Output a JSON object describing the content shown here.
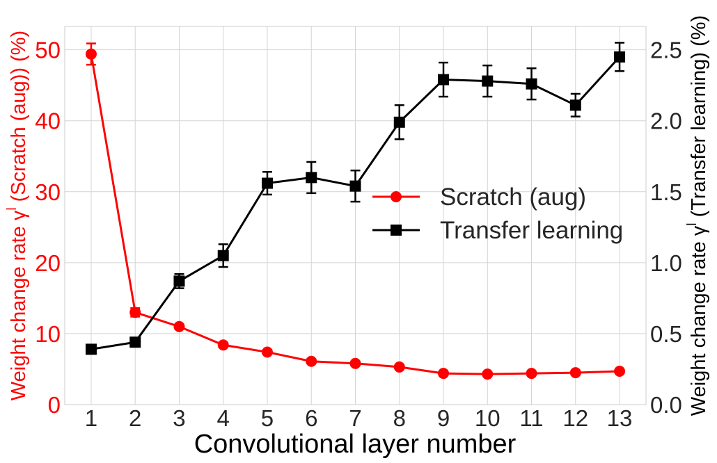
{
  "chart_data": {
    "type": "line",
    "xlabel": "Convolutional layer number",
    "ylabel_left": "Weight change rate γ",
    "ylabel_left_sup": "l",
    "ylabel_left_suffix": " (Scratch (aug)) (%)",
    "ylabel_right": "Weight change rate γ",
    "ylabel_right_sup": "l",
    "ylabel_right_suffix": " (Transfer learning) (%)",
    "x": [
      1,
      2,
      3,
      4,
      5,
      6,
      7,
      8,
      9,
      10,
      11,
      12,
      13
    ],
    "x_ticks": [
      "1",
      "2",
      "3",
      "4",
      "5",
      "6",
      "7",
      "8",
      "9",
      "10",
      "11",
      "12",
      "13"
    ],
    "xlim": [
      0.4,
      13.6
    ],
    "ylim_left": [
      0,
      53.3
    ],
    "ylim_right": [
      0,
      2.665
    ],
    "yticks_left": [
      "0",
      "10",
      "20",
      "30",
      "40",
      "50"
    ],
    "yticks_right": [
      "0.0",
      "0.5",
      "1.0",
      "1.5",
      "2.0",
      "2.5"
    ],
    "grid": true,
    "legend_position": "center-right",
    "series": [
      {
        "name": "Scratch (aug)",
        "axis": "left",
        "color": "#ff0000",
        "marker": "circle",
        "values": [
          49.4,
          13.0,
          11.0,
          8.4,
          7.4,
          6.1,
          5.8,
          5.3,
          4.4,
          4.3,
          4.4,
          4.5,
          4.7
        ],
        "errors": [
          1.5,
          0.6,
          0.3,
          0.3,
          0.3,
          0.3,
          0.3,
          0.3,
          0.2,
          0.2,
          0.2,
          0.2,
          0.2
        ]
      },
      {
        "name": "Transfer learning",
        "axis": "right",
        "color": "#000000",
        "marker": "square",
        "values": [
          0.39,
          0.44,
          0.87,
          1.05,
          1.56,
          1.6,
          1.54,
          1.99,
          2.29,
          2.28,
          2.26,
          2.11,
          2.45
        ],
        "errors": [
          0.03,
          0.02,
          0.05,
          0.08,
          0.08,
          0.11,
          0.11,
          0.12,
          0.12,
          0.11,
          0.11,
          0.08,
          0.1
        ]
      }
    ]
  }
}
